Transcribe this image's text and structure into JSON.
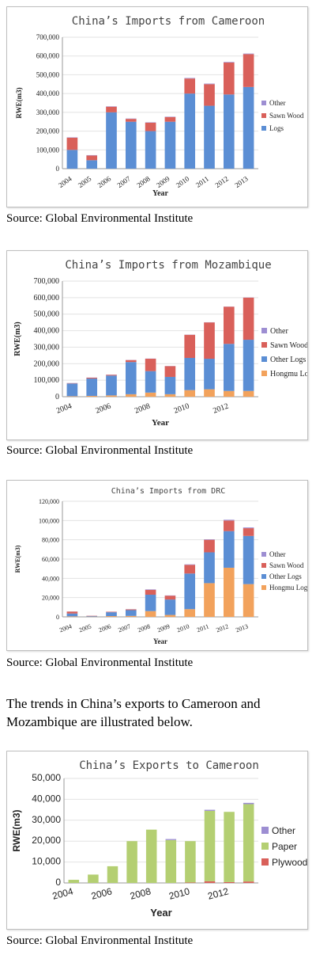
{
  "sources": [
    "Source: Global Environmental Institute",
    "Source: Global Environmental Institute",
    "Source: Global Environmental Institute",
    "Source: Global Environmental Institute"
  ],
  "paragraph": "The trends in China’s exports to Cameroon and Mozambique are illustrated below.",
  "colors": {
    "blue": "#5b8ed4",
    "red": "#d9605a",
    "lavender": "#9d8ed2",
    "orange": "#f2a25c",
    "green": "#b4cf72"
  },
  "chart_data": [
    {
      "type": "bar",
      "stacked": true,
      "title": "China’s Imports from Cameroon",
      "xlabel": "Year",
      "ylabel": "RWE(m3)",
      "ylim": [
        0,
        700000
      ],
      "yticks": [
        "0",
        "100,000",
        "200,000",
        "300,000",
        "400,000",
        "500,000",
        "600,000",
        "700,000"
      ],
      "categories": [
        "2004",
        "2005",
        "2006",
        "2007",
        "2008",
        "2009",
        "2010",
        "2011",
        "2012",
        "2013"
      ],
      "legend_position": "right",
      "series": [
        {
          "name": "Logs",
          "color": "#5b8ed4",
          "values": [
            100000,
            45000,
            300000,
            250000,
            200000,
            250000,
            400000,
            335000,
            395000,
            435000
          ]
        },
        {
          "name": "Sawn Wood",
          "color": "#d9605a",
          "values": [
            65000,
            25000,
            30000,
            15000,
            45000,
            25000,
            80000,
            115000,
            170000,
            175000
          ]
        },
        {
          "name": "Other",
          "color": "#9d8ed2",
          "values": [
            2000,
            2000,
            2000,
            2000,
            2000,
            2000,
            3000,
            3000,
            3000,
            3000
          ]
        }
      ]
    },
    {
      "type": "bar",
      "stacked": true,
      "title": "China’s Imports from Mozambique",
      "xlabel": "Year",
      "ylabel": "RWE(m3)",
      "ylim": [
        0,
        700000
      ],
      "yticks": [
        "0",
        "100,000",
        "200,000",
        "300,000",
        "400,000",
        "500,000",
        "600,000",
        "700,000"
      ],
      "categories": [
        "2004",
        "2005",
        "2006",
        "2007",
        "2008",
        "2009",
        "2010",
        "2011",
        "2012",
        "2013"
      ],
      "xticks_shown": [
        "2004",
        "2006",
        "2008",
        "2010",
        "2012"
      ],
      "legend_position": "right",
      "series": [
        {
          "name": "Hongmu Logs(",
          "color": "#f2a25c",
          "values": [
            3000,
            5000,
            8000,
            15000,
            25000,
            15000,
            40000,
            45000,
            35000,
            35000
          ]
        },
        {
          "name": "Other Logs",
          "color": "#5b8ed4",
          "values": [
            77000,
            105000,
            120000,
            195000,
            130000,
            105000,
            195000,
            185000,
            285000,
            310000
          ]
        },
        {
          "name": "Sawn Wood",
          "color": "#d9605a",
          "values": [
            2000,
            5000,
            5000,
            12000,
            75000,
            65000,
            140000,
            220000,
            225000,
            255000
          ]
        },
        {
          "name": "Other",
          "color": "#9d8ed2",
          "values": [
            1000,
            1000,
            1000,
            1000,
            1000,
            1000,
            1000,
            1000,
            1000,
            1000
          ]
        }
      ]
    },
    {
      "type": "bar",
      "stacked": true,
      "title": "China’s Imports from DRC",
      "xlabel": "Year",
      "ylabel": "RWE(m3)",
      "ylim": [
        0,
        120000
      ],
      "yticks": [
        "0",
        "20,000",
        "40,000",
        "60,000",
        "80,000",
        "100,000",
        "120,000"
      ],
      "categories": [
        "2004",
        "2005",
        "2006",
        "2007",
        "2008",
        "2009",
        "2010",
        "2011",
        "2012",
        "2013"
      ],
      "legend_position": "right",
      "series": [
        {
          "name": "Hongmu Logs",
          "color": "#f2a25c",
          "values": [
            500,
            300,
            800,
            1000,
            6000,
            2000,
            8000,
            35000,
            51000,
            34000
          ]
        },
        {
          "name": "Other Logs",
          "color": "#5b8ed4",
          "values": [
            3000,
            500,
            4000,
            6000,
            17000,
            16000,
            37000,
            32000,
            38000,
            50000
          ]
        },
        {
          "name": "Sawn Wood",
          "color": "#d9605a",
          "values": [
            2000,
            300,
            500,
            800,
            5000,
            4000,
            9000,
            13000,
            11000,
            8000
          ]
        },
        {
          "name": "Other",
          "color": "#9d8ed2",
          "values": [
            100,
            100,
            100,
            100,
            500,
            300,
            500,
            500,
            800,
            800
          ]
        }
      ]
    },
    {
      "type": "bar",
      "stacked": true,
      "title": "China’s Exports to Cameroon",
      "xlabel": "Year",
      "ylabel": "RWE(m3)",
      "ylim": [
        0,
        50000
      ],
      "yticks": [
        "0",
        "10,000",
        "20,000",
        "30,000",
        "40,000",
        "50,000"
      ],
      "categories": [
        "2004",
        "2005",
        "2006",
        "2007",
        "2008",
        "2009",
        "2010",
        "2011",
        "2012",
        "2013"
      ],
      "xticks_shown": [
        "2004",
        "2006",
        "2008",
        "2010",
        "2012"
      ],
      "legend_position": "right",
      "series": [
        {
          "name": "Plywood",
          "color": "#d9605a",
          "values": [
            0,
            0,
            0,
            0,
            0,
            0,
            200,
            800,
            400,
            700
          ]
        },
        {
          "name": "Paper",
          "color": "#b4cf72",
          "values": [
            1500,
            4000,
            8000,
            20000,
            25500,
            20500,
            19800,
            33700,
            33600,
            37000
          ]
        },
        {
          "name": "Other",
          "color": "#9d8ed2",
          "values": [
            0,
            0,
            0,
            0,
            0,
            500,
            0,
            500,
            0,
            600
          ]
        }
      ]
    }
  ]
}
